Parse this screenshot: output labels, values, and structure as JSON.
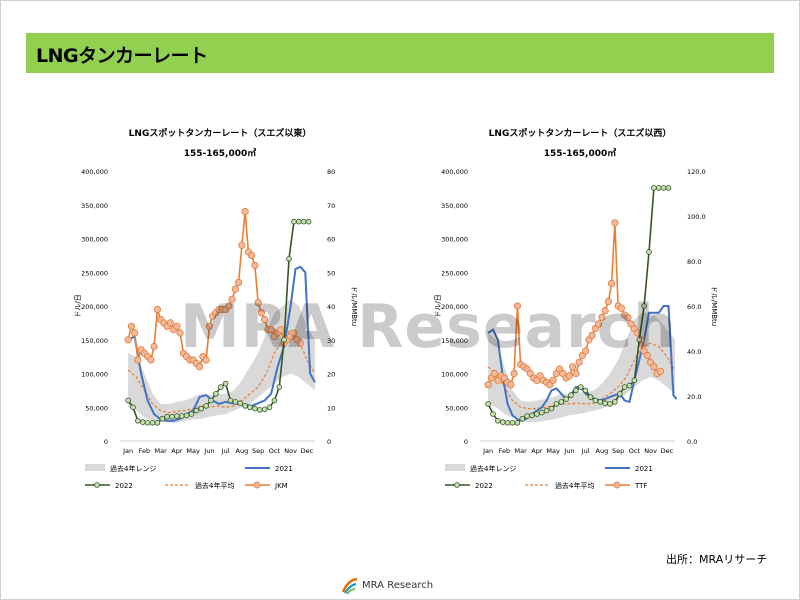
{
  "page": {
    "title": "LNGタンカーレート",
    "source": "出所：MRAリサーチ",
    "watermark": "MRA Research",
    "logo_text": "MRA Research"
  },
  "chart_data": [
    {
      "type": "line",
      "title": "LNGスポットタンカーレート（スエズ以東）",
      "subtitle": "155-165,000㎥",
      "ylabel": "ドル/日",
      "y2label": "ドル/MMBtu",
      "ylim": [
        0,
        400000
      ],
      "y2lim": [
        0,
        80
      ],
      "yticks": [
        "0",
        "50,000",
        "100,000",
        "150,000",
        "200,000",
        "250,000",
        "300,000",
        "350,000",
        "400,000"
      ],
      "y2ticks": [
        "0",
        "10",
        "20",
        "30",
        "40",
        "50",
        "60",
        "70",
        "80"
      ],
      "months": [
        "Jan",
        "Feb",
        "Mar",
        "Apr",
        "May",
        "Jun",
        "Jul",
        "Aug",
        "Sep",
        "Oct",
        "Nov",
        "Dec"
      ],
      "legend": [
        "過去4年レンジ",
        "2021",
        "2022",
        "過去4年平均",
        "JKM"
      ],
      "series": {
        "range": {
          "name": "過去4年レンジ",
          "color": "#d9d9d9",
          "x": [
            0,
            0.5,
            1,
            1.5,
            2,
            2.5,
            3,
            3.5,
            4,
            4.5,
            5,
            5.5,
            6,
            6.5,
            7,
            7.5,
            8,
            8.5,
            9,
            9.5,
            10,
            10.5,
            11,
            11.5
          ],
          "low": [
            50000,
            45000,
            35000,
            30000,
            28000,
            27000,
            27000,
            30000,
            32000,
            33000,
            36000,
            38000,
            40000,
            45000,
            50000,
            55000,
            65000,
            75000,
            85000,
            95000,
            100000,
            95000,
            85000,
            75000
          ],
          "high": [
            130000,
            125000,
            100000,
            70000,
            55000,
            55000,
            58000,
            60000,
            65000,
            70000,
            68000,
            70000,
            70000,
            75000,
            90000,
            110000,
            130000,
            160000,
            190000,
            200000,
            210000,
            200000,
            170000,
            150000
          ]
        },
        "y2021": {
          "name": "2021",
          "color": "#4472c4",
          "x": [
            0,
            0.4,
            0.8,
            1.2,
            1.6,
            2,
            2.4,
            2.8,
            3.2,
            3.6,
            4,
            4.4,
            4.8,
            5.2,
            5.6,
            6,
            6.4,
            6.8,
            7.2,
            7.6,
            8,
            8.4,
            8.8,
            9.2,
            9.6,
            10,
            10.3,
            10.6,
            10.9,
            11.2,
            11.5
          ],
          "y": [
            150000,
            155000,
            100000,
            60000,
            40000,
            32000,
            30000,
            30000,
            33000,
            40000,
            45000,
            65000,
            68000,
            60000,
            55000,
            58000,
            56000,
            55000,
            54000,
            52000,
            56000,
            60000,
            70000,
            110000,
            140000,
            200000,
            255000,
            258000,
            250000,
            100000,
            87000
          ]
        },
        "y2022": {
          "name": "2022",
          "color": "#375623",
          "x": [
            0,
            0.3,
            0.6,
            0.9,
            1.2,
            1.5,
            1.8,
            2.1,
            2.4,
            2.7,
            3,
            3.3,
            3.6,
            3.9,
            4.2,
            4.5,
            4.8,
            5.1,
            5.4,
            5.7,
            6,
            6.3,
            6.6,
            6.9,
            7.2,
            7.5,
            7.8,
            8.1,
            8.4,
            8.7,
            9,
            9.3,
            9.6,
            9.9,
            10.2,
            10.5,
            10.8,
            11.1
          ],
          "y": [
            60000,
            50000,
            30000,
            28000,
            27000,
            27000,
            27000,
            33000,
            36000,
            36000,
            37000,
            37000,
            38000,
            40000,
            45000,
            48000,
            52000,
            60000,
            70000,
            80000,
            85000,
            60000,
            58000,
            56000,
            52000,
            50000,
            48000,
            46000,
            47000,
            50000,
            60000,
            80000,
            150000,
            270000,
            325000,
            325000,
            325000,
            325000
          ]
        },
        "avg": {
          "name": "過去4年平均",
          "color": "#ed7d31",
          "x": [
            0,
            0.5,
            1,
            1.5,
            2,
            2.5,
            3,
            3.5,
            4,
            4.5,
            5,
            5.5,
            6,
            6.5,
            7,
            7.5,
            8,
            8.5,
            9,
            9.5,
            10,
            10.5,
            11,
            11.5
          ],
          "y": [
            105000,
            95000,
            75000,
            55000,
            45000,
            42000,
            44000,
            45000,
            48000,
            52000,
            50000,
            52000,
            50000,
            52000,
            60000,
            70000,
            80000,
            100000,
            130000,
            150000,
            165000,
            150000,
            120000,
            100000
          ]
        },
        "jkm": {
          "name": "JKM",
          "color": "#ed7d31",
          "x": [
            0,
            0.2,
            0.4,
            0.6,
            0.8,
            1,
            1.2,
            1.4,
            1.6,
            1.8,
            2,
            2.2,
            2.4,
            2.6,
            2.8,
            3,
            3.2,
            3.4,
            3.6,
            3.8,
            4,
            4.2,
            4.4,
            4.6,
            4.8,
            5,
            5.2,
            5.4,
            5.6,
            5.8,
            6,
            6.2,
            6.4,
            6.6,
            6.8,
            7,
            7.2,
            7.4,
            7.6,
            7.8,
            8,
            8.2,
            8.4,
            8.6,
            8.8,
            9,
            9.2,
            9.4,
            9.6,
            9.8,
            10,
            10.2,
            10.4,
            10.6
          ],
          "y": [
            30,
            34,
            32,
            24,
            27,
            26,
            25,
            24,
            28,
            39,
            36,
            35,
            34,
            35,
            33,
            34,
            32,
            26,
            25,
            24,
            24,
            23,
            22,
            25,
            24,
            34,
            37,
            38,
            39,
            39,
            39,
            40,
            42,
            45,
            47,
            58,
            68,
            56,
            55,
            52,
            41,
            38,
            36,
            33,
            33,
            31,
            32,
            33,
            29,
            30,
            31,
            32,
            30,
            29
          ]
        }
      }
    },
    {
      "type": "line",
      "title": "LNGスポットタンカーレート（スエズ以西）",
      "subtitle": "155-165,000㎥",
      "ylabel": "ドル/日",
      "y2label": "ドル/MMBtu",
      "ylim": [
        0,
        400000
      ],
      "y2lim": [
        0,
        120
      ],
      "yticks": [
        "0",
        "50,000",
        "100,000",
        "150,000",
        "200,000",
        "250,000",
        "300,000",
        "350,000",
        "400,000"
      ],
      "y2ticks": [
        "0.0",
        "20.0",
        "40.0",
        "60.0",
        "80.0",
        "100.0",
        "120.0"
      ],
      "months": [
        "Jan",
        "Feb",
        "Mar",
        "Apr",
        "May",
        "Jun",
        "Jul",
        "Aug",
        "Sep",
        "Oct",
        "Nov",
        "Dec"
      ],
      "legend": [
        "過去4年レンジ",
        "2021",
        "2022",
        "過去4年平均",
        "TTF"
      ],
      "series": {
        "range": {
          "name": "過去4年レンジ",
          "color": "#d9d9d9",
          "x": [
            0,
            0.5,
            1,
            1.5,
            2,
            2.5,
            3,
            3.5,
            4,
            4.5,
            5,
            5.5,
            6,
            6.5,
            7,
            7.5,
            8,
            8.5,
            9,
            9.5,
            10,
            10.5,
            11,
            11.5
          ],
          "low": [
            55000,
            50000,
            40000,
            35000,
            30000,
            28000,
            28000,
            30000,
            32000,
            35000,
            38000,
            40000,
            42000,
            45000,
            48000,
            52000,
            60000,
            70000,
            80000,
            90000,
            95000,
            90000,
            80000,
            70000
          ],
          "high": [
            160000,
            150000,
            110000,
            75000,
            60000,
            58000,
            60000,
            62000,
            65000,
            70000,
            70000,
            72000,
            72000,
            75000,
            85000,
            100000,
            120000,
            150000,
            180000,
            190000,
            190000,
            180000,
            165000,
            150000
          ]
        },
        "y2021": {
          "name": "2021",
          "color": "#4472c4",
          "x": [
            0,
            0.3,
            0.6,
            0.9,
            1.2,
            1.5,
            1.8,
            2.1,
            2.4,
            2.7,
            3,
            3.3,
            3.6,
            3.9,
            4.2,
            4.5,
            4.8,
            5.1,
            5.4,
            5.7,
            6,
            6.3,
            6.6,
            6.9,
            7.2,
            7.5,
            7.8,
            8.1,
            8.4,
            8.7,
            9,
            9.3,
            9.6,
            9.9,
            10.2,
            10.5,
            10.8,
            11.1,
            11.4,
            11.6
          ],
          "y": [
            160000,
            165000,
            150000,
            95000,
            55000,
            38000,
            32000,
            30000,
            34000,
            40000,
            45000,
            50000,
            60000,
            75000,
            78000,
            70000,
            62000,
            68000,
            80000,
            80000,
            70000,
            65000,
            62000,
            60000,
            62000,
            65000,
            68000,
            70000,
            60000,
            58000,
            90000,
            120000,
            150000,
            190000,
            190000,
            190000,
            200000,
            200000,
            68000,
            62000
          ]
        },
        "y2022": {
          "name": "2022",
          "color": "#375623",
          "x": [
            0,
            0.3,
            0.6,
            0.9,
            1.2,
            1.5,
            1.8,
            2.1,
            2.4,
            2.7,
            3,
            3.3,
            3.6,
            3.9,
            4.2,
            4.5,
            4.8,
            5.1,
            5.4,
            5.7,
            6,
            6.3,
            6.6,
            6.9,
            7.2,
            7.5,
            7.8,
            8.1,
            8.4,
            8.7,
            9,
            9.3,
            9.6,
            9.9,
            10.2,
            10.5,
            10.8,
            11.1
          ],
          "y": [
            55000,
            40000,
            30000,
            28000,
            27000,
            27000,
            27000,
            33000,
            37000,
            38000,
            40000,
            42000,
            45000,
            48000,
            55000,
            58000,
            62000,
            68000,
            75000,
            80000,
            75000,
            65000,
            60000,
            58000,
            56000,
            55000,
            58000,
            70000,
            80000,
            82000,
            90000,
            150000,
            200000,
            280000,
            375000,
            375000,
            375000,
            375000
          ]
        },
        "avg": {
          "name": "過去4年平均",
          "color": "#ed7d31",
          "x": [
            0,
            0.5,
            1,
            1.5,
            2,
            2.5,
            3,
            3.5,
            4,
            4.5,
            5,
            5.5,
            6,
            6.5,
            7,
            7.5,
            8,
            8.5,
            9,
            9.5,
            10,
            10.5,
            11,
            11.5
          ],
          "y": [
            110000,
            100000,
            80000,
            60000,
            50000,
            48000,
            48000,
            50000,
            52000,
            55000,
            55000,
            56000,
            55000,
            56000,
            62000,
            70000,
            80000,
            95000,
            120000,
            140000,
            145000,
            140000,
            125000,
            105000
          ]
        },
        "ttf": {
          "name": "TTF",
          "color": "#ed7d31",
          "x": [
            0,
            0.2,
            0.4,
            0.6,
            0.8,
            1,
            1.2,
            1.4,
            1.6,
            1.8,
            2,
            2.2,
            2.4,
            2.6,
            2.8,
            3,
            3.2,
            3.4,
            3.6,
            3.8,
            4,
            4.2,
            4.4,
            4.6,
            4.8,
            5,
            5.2,
            5.4,
            5.6,
            5.8,
            6,
            6.2,
            6.4,
            6.6,
            6.8,
            7,
            7.2,
            7.4,
            7.6,
            7.8,
            8,
            8.2,
            8.4,
            8.6,
            8.8,
            9,
            9.2,
            9.4,
            9.6,
            9.8,
            10,
            10.2,
            10.4,
            10.6
          ],
          "y": [
            25,
            28,
            30,
            27,
            29,
            28,
            26,
            25,
            30,
            60,
            34,
            33,
            32,
            30,
            28,
            27,
            29,
            27,
            26,
            25,
            27,
            30,
            32,
            30,
            28,
            29,
            33,
            30,
            35,
            38,
            40,
            45,
            47,
            50,
            52,
            55,
            58,
            62,
            70,
            97,
            60,
            59,
            56,
            55,
            52,
            50,
            48,
            45,
            40,
            38,
            35,
            33,
            30,
            31
          ]
        }
      }
    }
  ]
}
